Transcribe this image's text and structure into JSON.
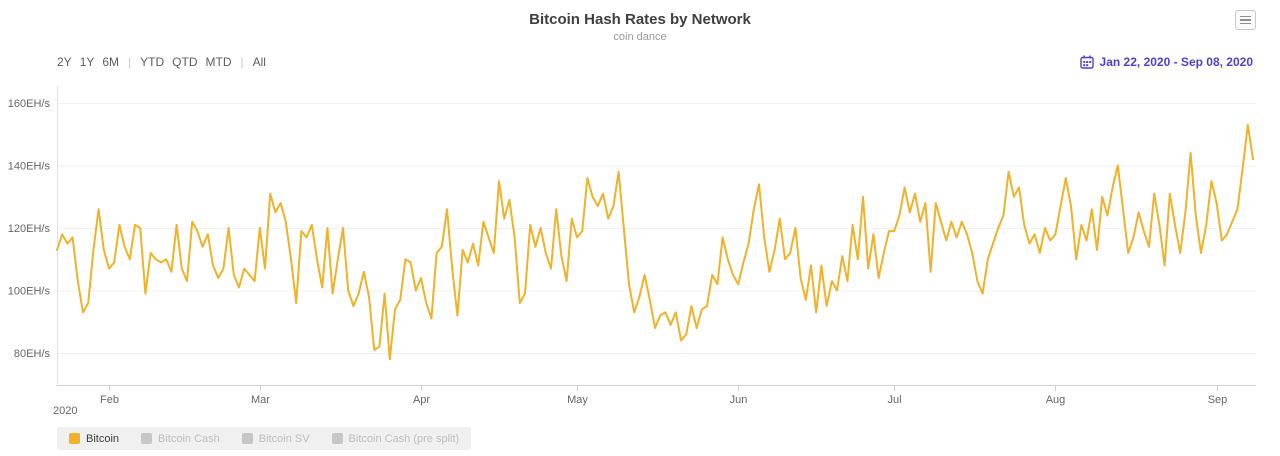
{
  "header": {
    "title": "Bitcoin Hash Rates by Network",
    "subtitle": "coin dance"
  },
  "toolbar": {
    "range_buttons": [
      "2Y",
      "1Y",
      "6M",
      "YTD",
      "QTD",
      "MTD",
      "All"
    ],
    "date_range": "Jan 22, 2020 - Sep 08, 2020"
  },
  "legend": {
    "items": [
      {
        "label": "Bitcoin",
        "color": "#EFB22A",
        "active": true
      },
      {
        "label": "Bitcoin Cash",
        "color": "#C6C6C6",
        "active": false
      },
      {
        "label": "Bitcoin SV",
        "color": "#C6C6C6",
        "active": false
      },
      {
        "label": "Bitcoin Cash (pre split)",
        "color": "#C6C6C6",
        "active": false
      }
    ]
  },
  "chart_data": {
    "type": "line",
    "title": "Bitcoin Hash Rates by Network",
    "subtitle": "coin dance",
    "unit": "EH/s",
    "year_label": "2020",
    "grid": true,
    "legend_position": "bottom-left",
    "ylim": [
      72,
      168
    ],
    "y_ticks": [
      {
        "label": "80EH/s",
        "value": 80
      },
      {
        "label": "100EH/s",
        "value": 100
      },
      {
        "label": "120EH/s",
        "value": 120
      },
      {
        "label": "140EH/s",
        "value": 140
      },
      {
        "label": "160EH/s",
        "value": 160
      }
    ],
    "x_ticks": [
      {
        "label": "Feb",
        "day_index": 10
      },
      {
        "label": "Mar",
        "day_index": 39
      },
      {
        "label": "Apr",
        "day_index": 70
      },
      {
        "label": "May",
        "day_index": 100
      },
      {
        "label": "Jun",
        "day_index": 131
      },
      {
        "label": "Jul",
        "day_index": 161
      },
      {
        "label": "Aug",
        "day_index": 192
      },
      {
        "label": "Sep",
        "day_index": 223
      }
    ],
    "series": [
      {
        "name": "Bitcoin",
        "color": "#EFB22A",
        "start_date": "2020-01-22",
        "end_date": "2020-09-08",
        "interval": "daily",
        "values": [
          113,
          118,
          115,
          117,
          103,
          93,
          96,
          113,
          126,
          113,
          107,
          109,
          121,
          114,
          110,
          121,
          120,
          99,
          112,
          110,
          109,
          110,
          106,
          121,
          107,
          103,
          122,
          119,
          114,
          118,
          108,
          104,
          107,
          120,
          105,
          101,
          107,
          105,
          103,
          120,
          107,
          131,
          125,
          128,
          122,
          110,
          96,
          119,
          117,
          121,
          110,
          101,
          120,
          99,
          110,
          120,
          100,
          95,
          99,
          106,
          98,
          81,
          82,
          99,
          78,
          94,
          97,
          110,
          109,
          100,
          104,
          96,
          91,
          112,
          114,
          126,
          107,
          92,
          113,
          109,
          115,
          108,
          122,
          117,
          112,
          135,
          123,
          129,
          117,
          96,
          99,
          121,
          114,
          120,
          112,
          107,
          126,
          111,
          103,
          123,
          117,
          119,
          136,
          130,
          127,
          131,
          123,
          127,
          138,
          120,
          102,
          93,
          98,
          105,
          97,
          88,
          92,
          93,
          89,
          93,
          84,
          86,
          95,
          88,
          94,
          95,
          105,
          102,
          117,
          110,
          105,
          102,
          109,
          115,
          126,
          134,
          117,
          106,
          113,
          123,
          110,
          112,
          120,
          104,
          97,
          108,
          93,
          108,
          95,
          103,
          100,
          111,
          103,
          121,
          110,
          130,
          107,
          118,
          104,
          112,
          119,
          119,
          124,
          133,
          125,
          131,
          122,
          128,
          106,
          128,
          122,
          116,
          122,
          117,
          122,
          118,
          112,
          103,
          99,
          110,
          115,
          120,
          124,
          138,
          130,
          133,
          121,
          115,
          118,
          112,
          120,
          116,
          118,
          127,
          136,
          127,
          110,
          121,
          116,
          126,
          113,
          130,
          124,
          133,
          140,
          126,
          112,
          117,
          125,
          119,
          114,
          131,
          121,
          108,
          131,
          121,
          112,
          125,
          144,
          124,
          112,
          121,
          135,
          128,
          116,
          118,
          122,
          126,
          139,
          153,
          142
        ]
      }
    ]
  }
}
